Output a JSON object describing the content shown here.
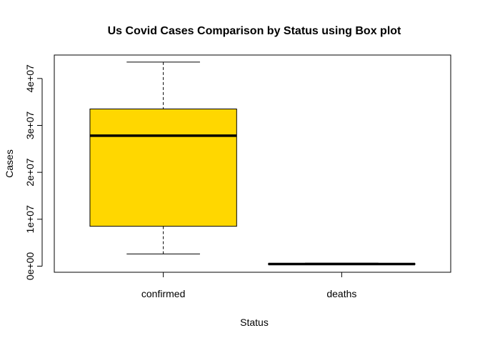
{
  "chart_data": {
    "type": "box",
    "title": "Us Covid Cases Comparison by Status using Box plot",
    "xlabel": "Status",
    "ylabel": "Cases",
    "categories": [
      "confirmed",
      "deaths"
    ],
    "ylim": [
      -1300000,
      45000000
    ],
    "yticks": [
      {
        "value": 0,
        "label": "0e+00"
      },
      {
        "value": 10000000,
        "label": "1e+07"
      },
      {
        "value": 20000000,
        "label": "2e+07"
      },
      {
        "value": 30000000,
        "label": "3e+07"
      },
      {
        "value": 40000000,
        "label": "4e+07"
      }
    ],
    "boxes": [
      {
        "name": "confirmed",
        "min": 2600000,
        "q1": 8500000,
        "median": 27800000,
        "q3": 33500000,
        "max": 43500000
      },
      {
        "name": "deaths",
        "min": 300000,
        "q1": 390000,
        "median": 450000,
        "q3": 520000,
        "max": 650000
      }
    ],
    "fill_color": "#FFD700",
    "grid": false,
    "legend": "none"
  }
}
